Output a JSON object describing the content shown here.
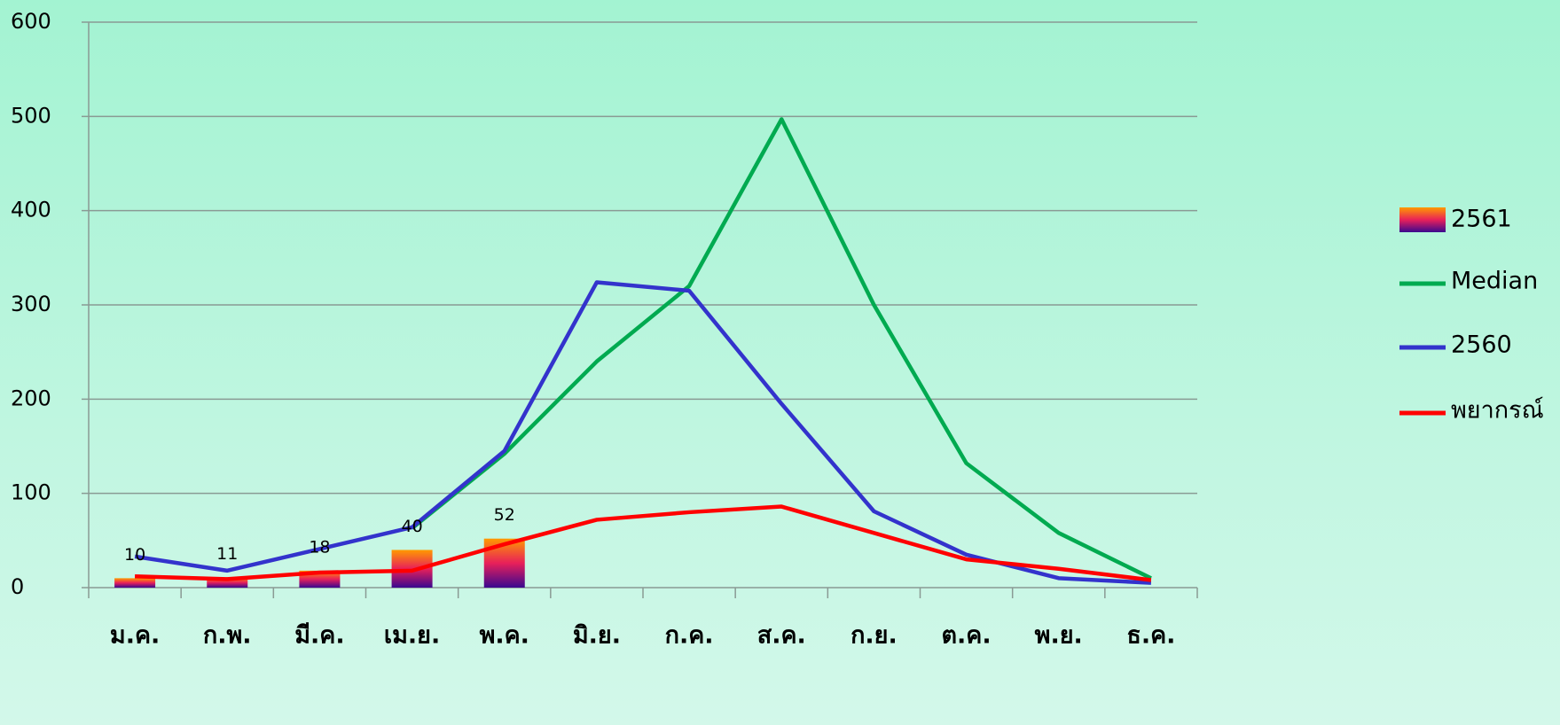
{
  "chart_data": {
    "type": "line",
    "categories": [
      "ม.ค.",
      "ก.พ.",
      "มี.ค.",
      "เม.ย.",
      "พ.ค.",
      "มิ.ย.",
      "ก.ค.",
      "ส.ค.",
      "ก.ย.",
      "ต.ค.",
      "พ.ย.",
      "ธ.ค."
    ],
    "series": [
      {
        "name": "2561",
        "type": "bar",
        "colors": [
          "#ff9a00",
          "#e8205a",
          "#3a0890"
        ],
        "values": [
          10,
          11,
          18,
          40,
          52,
          null,
          null,
          null,
          null,
          null,
          null,
          null
        ]
      },
      {
        "name": "Median",
        "color": "#00aa50",
        "values": [
          null,
          null,
          null,
          63,
          142,
          240,
          320,
          497,
          300,
          132,
          58,
          10
        ]
      },
      {
        "name": "2560",
        "color": "#3333cc",
        "values": [
          33,
          18,
          41,
          64,
          145,
          324,
          315,
          195,
          81,
          35,
          10,
          5
        ]
      },
      {
        "name": "พยากรณ์",
        "color": "#ff0000",
        "values": [
          12,
          9,
          16,
          18,
          46,
          72,
          80,
          86,
          58,
          30,
          20,
          8
        ]
      }
    ],
    "ylim": [
      0,
      600
    ],
    "yticks": [
      0,
      100,
      200,
      300,
      400,
      500,
      600
    ],
    "grid": true,
    "legend": "right"
  }
}
